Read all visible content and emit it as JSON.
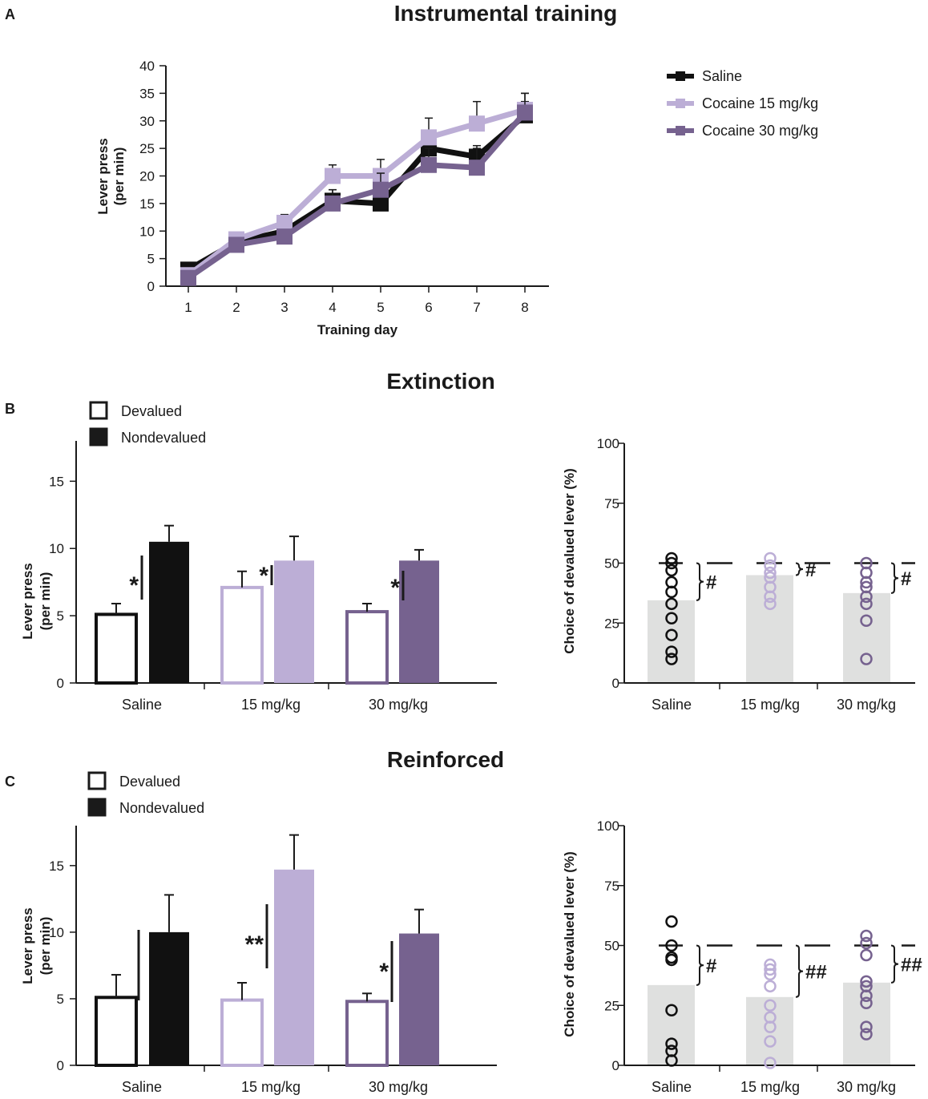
{
  "colors": {
    "saline": "#111111",
    "c15": "#bcaed6",
    "c30": "#76628f",
    "scatter_bg": "#dfe0df"
  },
  "panels": {
    "a": "A",
    "b": "B",
    "c": "C"
  },
  "chart_data": [
    {
      "id": "A",
      "type": "line",
      "title": "Instrumental training",
      "xlabel": "Training day",
      "ylabel": [
        "Lever press",
        "(per min)"
      ],
      "x": [
        1,
        2,
        3,
        4,
        5,
        6,
        7,
        8
      ],
      "ylim": [
        0,
        40
      ],
      "yticks": [
        0,
        5,
        10,
        15,
        20,
        25,
        30,
        35,
        40
      ],
      "legend_position": "top-right",
      "series": [
        {
          "name": "Saline",
          "color_key": "saline",
          "values": [
            3,
            8,
            10,
            15.5,
            15,
            25,
            23.5,
            31
          ],
          "errors": [
            1,
            1,
            1,
            2,
            1.5,
            2,
            2,
            2.5
          ]
        },
        {
          "name": "Cocaine 15 mg/kg",
          "color_key": "c15",
          "values": [
            2,
            8.5,
            11.5,
            20,
            20,
            27,
            29.5,
            32
          ],
          "errors": [
            1,
            1,
            1.5,
            2,
            3,
            3.5,
            4,
            3
          ]
        },
        {
          "name": "Cocaine 30 mg/kg",
          "color_key": "c30",
          "values": [
            1.5,
            7.5,
            9,
            15,
            17.5,
            22,
            21.5,
            31.5
          ],
          "errors": [
            1,
            1,
            1,
            2.5,
            3,
            3,
            3.5,
            3.5
          ]
        }
      ]
    },
    {
      "id": "B-left",
      "type": "bar",
      "title": "Extinction",
      "ylabel": [
        "Lever press",
        "(per min)"
      ],
      "ylim": [
        0,
        18
      ],
      "yticks": [
        0,
        5,
        10,
        15
      ],
      "categories": [
        "Saline",
        "15 mg/kg",
        "30 mg/kg"
      ],
      "legend": [
        "Devalued",
        "Nondevalued"
      ],
      "series": [
        {
          "name": "Devalued",
          "values": [
            5.1,
            7.1,
            5.3
          ],
          "errors": [
            0.8,
            1.2,
            0.6
          ]
        },
        {
          "name": "Nondevalued",
          "values": [
            10.5,
            9.1,
            9.1
          ],
          "errors": [
            1.2,
            1.8,
            0.8
          ]
        }
      ],
      "significance": [
        "*",
        "*",
        "*"
      ]
    },
    {
      "id": "B-right",
      "type": "scatter",
      "ylabel": "Choice of devalued lever (%)",
      "ylim": [
        0,
        100
      ],
      "yticks": [
        0,
        25,
        50,
        75,
        100
      ],
      "categories": [
        "Saline",
        "15 mg/kg",
        "30 mg/kg"
      ],
      "means": [
        34.5,
        45,
        37.5
      ],
      "reference": 50,
      "points": [
        [
          52,
          50,
          47,
          42,
          38,
          33,
          27,
          20,
          13,
          10
        ],
        [
          52,
          49,
          46,
          44,
          40,
          36,
          33
        ],
        [
          50,
          46,
          42,
          40,
          36,
          33,
          26,
          10
        ]
      ],
      "significance": [
        "#",
        "#",
        "#"
      ]
    },
    {
      "id": "C-left",
      "type": "bar",
      "title": "Reinforced",
      "ylabel": [
        "Lever press",
        "(per min)"
      ],
      "ylim": [
        0,
        18
      ],
      "yticks": [
        0,
        5,
        10,
        15
      ],
      "categories": [
        "Saline",
        "15 mg/kg",
        "30 mg/kg"
      ],
      "legend": [
        "Devalued",
        "Nondevalued"
      ],
      "series": [
        {
          "name": "Devalued",
          "values": [
            5.1,
            4.9,
            4.8
          ],
          "errors": [
            1.7,
            1.3,
            0.6
          ]
        },
        {
          "name": "Nondevalued",
          "values": [
            10.0,
            14.7,
            9.9
          ],
          "errors": [
            2.8,
            2.6,
            1.8
          ]
        }
      ],
      "significance": [
        "",
        "**",
        "*"
      ]
    },
    {
      "id": "C-right",
      "type": "scatter",
      "ylabel": "Choice of devalued lever (%)",
      "ylim": [
        0,
        100
      ],
      "yticks": [
        0,
        25,
        50,
        75,
        100
      ],
      "categories": [
        "Saline",
        "15 mg/kg",
        "30 mg/kg"
      ],
      "means": [
        33.5,
        28.5,
        34.5
      ],
      "reference": 50,
      "points": [
        [
          60,
          50,
          45,
          44,
          23,
          9,
          6,
          2
        ],
        [
          42,
          40,
          38,
          33,
          25,
          20,
          16,
          10,
          1
        ],
        [
          54,
          51,
          46,
          35,
          33,
          29,
          26,
          16,
          13
        ]
      ],
      "significance": [
        "#",
        "##",
        "##"
      ]
    }
  ]
}
